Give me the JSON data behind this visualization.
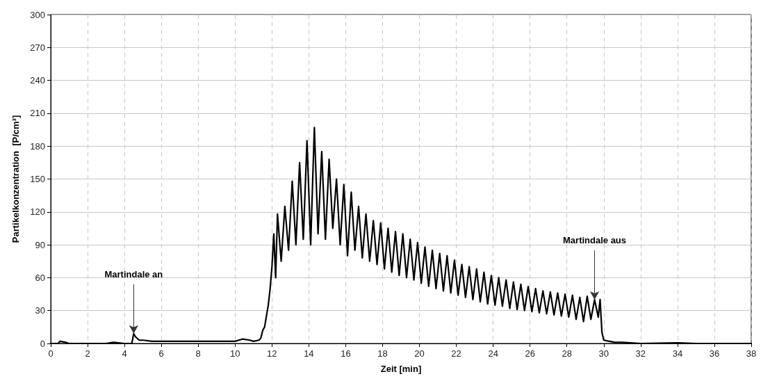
{
  "chart_data": {
    "type": "line",
    "xlabel": "Zeit [min]",
    "ylabel": "Partikelkonzentration  [P/cm³]",
    "x": [
      0,
      0.4,
      0.5,
      0.8,
      1,
      2,
      3,
      3.4,
      4,
      4.4,
      4.5,
      4.6,
      4.8,
      5,
      5.5,
      6,
      7,
      8,
      9,
      10,
      10.4,
      10.8,
      11,
      11.3,
      11.4,
      11.5,
      11.6,
      11.7,
      11.8,
      11.9,
      12.0,
      12.1,
      12.2,
      12.3,
      12.5,
      12.7,
      12.9,
      13.1,
      13.3,
      13.5,
      13.7,
      13.9,
      14.1,
      14.3,
      14.5,
      14.7,
      14.9,
      15.1,
      15.3,
      15.5,
      15.7,
      15.9,
      16.1,
      16.3,
      16.5,
      16.7,
      16.9,
      17.1,
      17.3,
      17.5,
      17.7,
      17.9,
      18.1,
      18.3,
      18.5,
      18.7,
      18.9,
      19.1,
      19.3,
      19.5,
      19.7,
      19.9,
      20.1,
      20.3,
      20.5,
      20.7,
      20.9,
      21.1,
      21.3,
      21.5,
      21.7,
      21.9,
      22.1,
      22.3,
      22.5,
      22.7,
      22.9,
      23.1,
      23.3,
      23.5,
      23.7,
      23.9,
      24.1,
      24.3,
      24.5,
      24.7,
      24.9,
      25.1,
      25.3,
      25.5,
      25.7,
      25.9,
      26.1,
      26.3,
      26.5,
      26.7,
      26.9,
      27.1,
      27.3,
      27.5,
      27.7,
      27.9,
      28.1,
      28.3,
      28.5,
      28.7,
      28.9,
      29.1,
      29.3,
      29.5,
      29.7,
      29.8,
      29.85,
      29.9,
      30.0,
      30.3,
      30.6,
      31,
      32,
      34,
      35,
      38
    ],
    "series": [
      {
        "color": "#000000",
        "values": [
          0,
          0,
          2,
          1,
          0,
          0,
          0,
          1,
          0,
          0,
          9,
          6,
          3,
          3,
          2,
          2,
          2,
          2,
          2,
          2,
          4,
          3,
          2,
          3,
          5,
          12,
          15,
          25,
          35,
          50,
          70,
          100,
          60,
          118,
          75,
          125,
          85,
          148,
          90,
          165,
          95,
          185,
          90,
          197,
          100,
          175,
          95,
          168,
          105,
          150,
          90,
          145,
          80,
          138,
          85,
          125,
          78,
          118,
          75,
          112,
          72,
          110,
          68,
          105,
          65,
          102,
          62,
          100,
          60,
          95,
          58,
          92,
          55,
          88,
          52,
          85,
          50,
          82,
          48,
          80,
          46,
          76,
          44,
          72,
          42,
          70,
          40,
          68,
          38,
          65,
          36,
          62,
          35,
          60,
          34,
          58,
          32,
          56,
          31,
          54,
          30,
          52,
          29,
          50,
          28,
          48,
          27,
          47,
          26,
          46,
          25,
          45,
          24,
          44,
          22,
          42,
          20,
          43,
          22,
          40,
          24,
          40,
          25,
          10,
          3,
          2,
          1,
          1,
          0,
          0.5,
          0,
          0
        ]
      }
    ],
    "xlim": [
      0,
      38
    ],
    "xticks": [
      0,
      2,
      4,
      6,
      8,
      10,
      12,
      14,
      16,
      18,
      20,
      22,
      24,
      26,
      28,
      30,
      32,
      34,
      36,
      38
    ],
    "ylim": [
      0,
      300
    ],
    "yticks": [
      0,
      30,
      60,
      90,
      120,
      150,
      180,
      210,
      240,
      270,
      300
    ],
    "grid": true,
    "marker": "none",
    "line_style": "solid",
    "annotations": [
      {
        "text": "Martindale an",
        "x": 4.5,
        "y": 9
      },
      {
        "text": "Martindale aus",
        "x": 29.5,
        "y": 40
      }
    ]
  }
}
